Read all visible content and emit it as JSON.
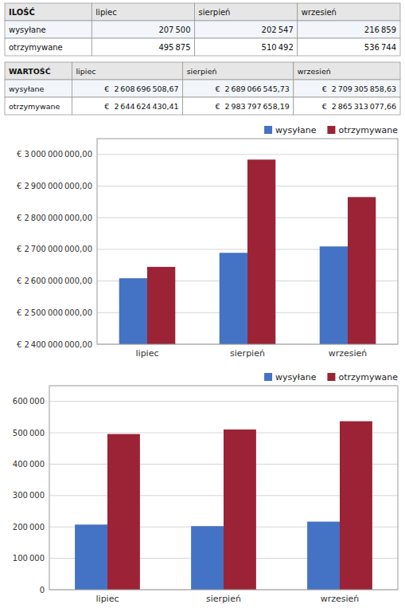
{
  "chart_data": [
    {
      "type": "table",
      "title": "ILOŚĆ",
      "categories": [
        "lipiec",
        "sierpień",
        "wrzesień"
      ],
      "series": [
        {
          "name": "wysyłane",
          "values": [
            207500,
            202547,
            216859
          ],
          "value_labels": [
            "207 500",
            "202 547",
            "216 859"
          ]
        },
        {
          "name": "otrzymywane",
          "values": [
            495875,
            510492,
            536744
          ],
          "value_labels": [
            "495 875",
            "510 492",
            "536 744"
          ]
        }
      ]
    },
    {
      "type": "table",
      "title": "WARTOŚĆ",
      "categories": [
        "lipiec",
        "sierpień",
        "wrzesień"
      ],
      "series": [
        {
          "name": "wysyłane",
          "values": [
            2608696508.67,
            2689066545.73,
            2709305858.63
          ],
          "value_labels": [
            "€  2 608 696 508,67",
            "€  2 689 066 545,73",
            "€  2 709 305 858,63"
          ]
        },
        {
          "name": "otrzymywane",
          "values": [
            2644624430.41,
            2983797658.19,
            2865313077.66
          ],
          "value_labels": [
            "€  2 644 624 430,41",
            "€  2 983 797 658,19",
            "€  2 865 313 077,66"
          ]
        }
      ]
    },
    {
      "type": "bar",
      "categories": [
        "lipiec",
        "sierpień",
        "wrzesień"
      ],
      "series": [
        {
          "name": "wysyłane",
          "color": "#4472C4",
          "values": [
            2608696508.67,
            2689066545.73,
            2709305858.63
          ]
        },
        {
          "name": "otrzymywane",
          "color": "#9B2335",
          "values": [
            2644624430.41,
            2983797658.19,
            2865313077.66
          ]
        }
      ],
      "ylim": [
        2400000000,
        3050000000
      ],
      "yticks": [
        {
          "value": 2400000000,
          "label": "€ 2 400 000 000,00"
        },
        {
          "value": 2500000000,
          "label": "€ 2 500 000 000,00"
        },
        {
          "value": 2600000000,
          "label": "€ 2 600 000 000,00"
        },
        {
          "value": 2700000000,
          "label": "€ 2 700 000 000,00"
        },
        {
          "value": 2800000000,
          "label": "€ 2 800 000 000,00"
        },
        {
          "value": 2900000000,
          "label": "€ 2 900 000 000,00"
        },
        {
          "value": 3000000000,
          "label": "€ 3 000 000 000,00"
        }
      ],
      "grid": true,
      "legend": "upper right"
    },
    {
      "type": "bar",
      "categories": [
        "lipiec",
        "sierpień",
        "wrzesień"
      ],
      "series": [
        {
          "name": "wysyłane",
          "color": "#4472C4",
          "values": [
            207500,
            202547,
            216859
          ]
        },
        {
          "name": "otrzymywane",
          "color": "#9B2335",
          "values": [
            495875,
            510492,
            536744
          ]
        }
      ],
      "ylim": [
        0,
        650000
      ],
      "yticks": [
        0,
        {
          "value": 100000,
          "label": "100 000"
        },
        {
          "value": 200000,
          "label": "200 000"
        },
        {
          "value": 300000,
          "label": "300 000"
        },
        {
          "value": 400000,
          "label": "400 000"
        },
        {
          "value": 500000,
          "label": "500 000"
        },
        {
          "value": 600000,
          "label": "600 000"
        }
      ],
      "grid": true,
      "legend": "upper right"
    }
  ]
}
